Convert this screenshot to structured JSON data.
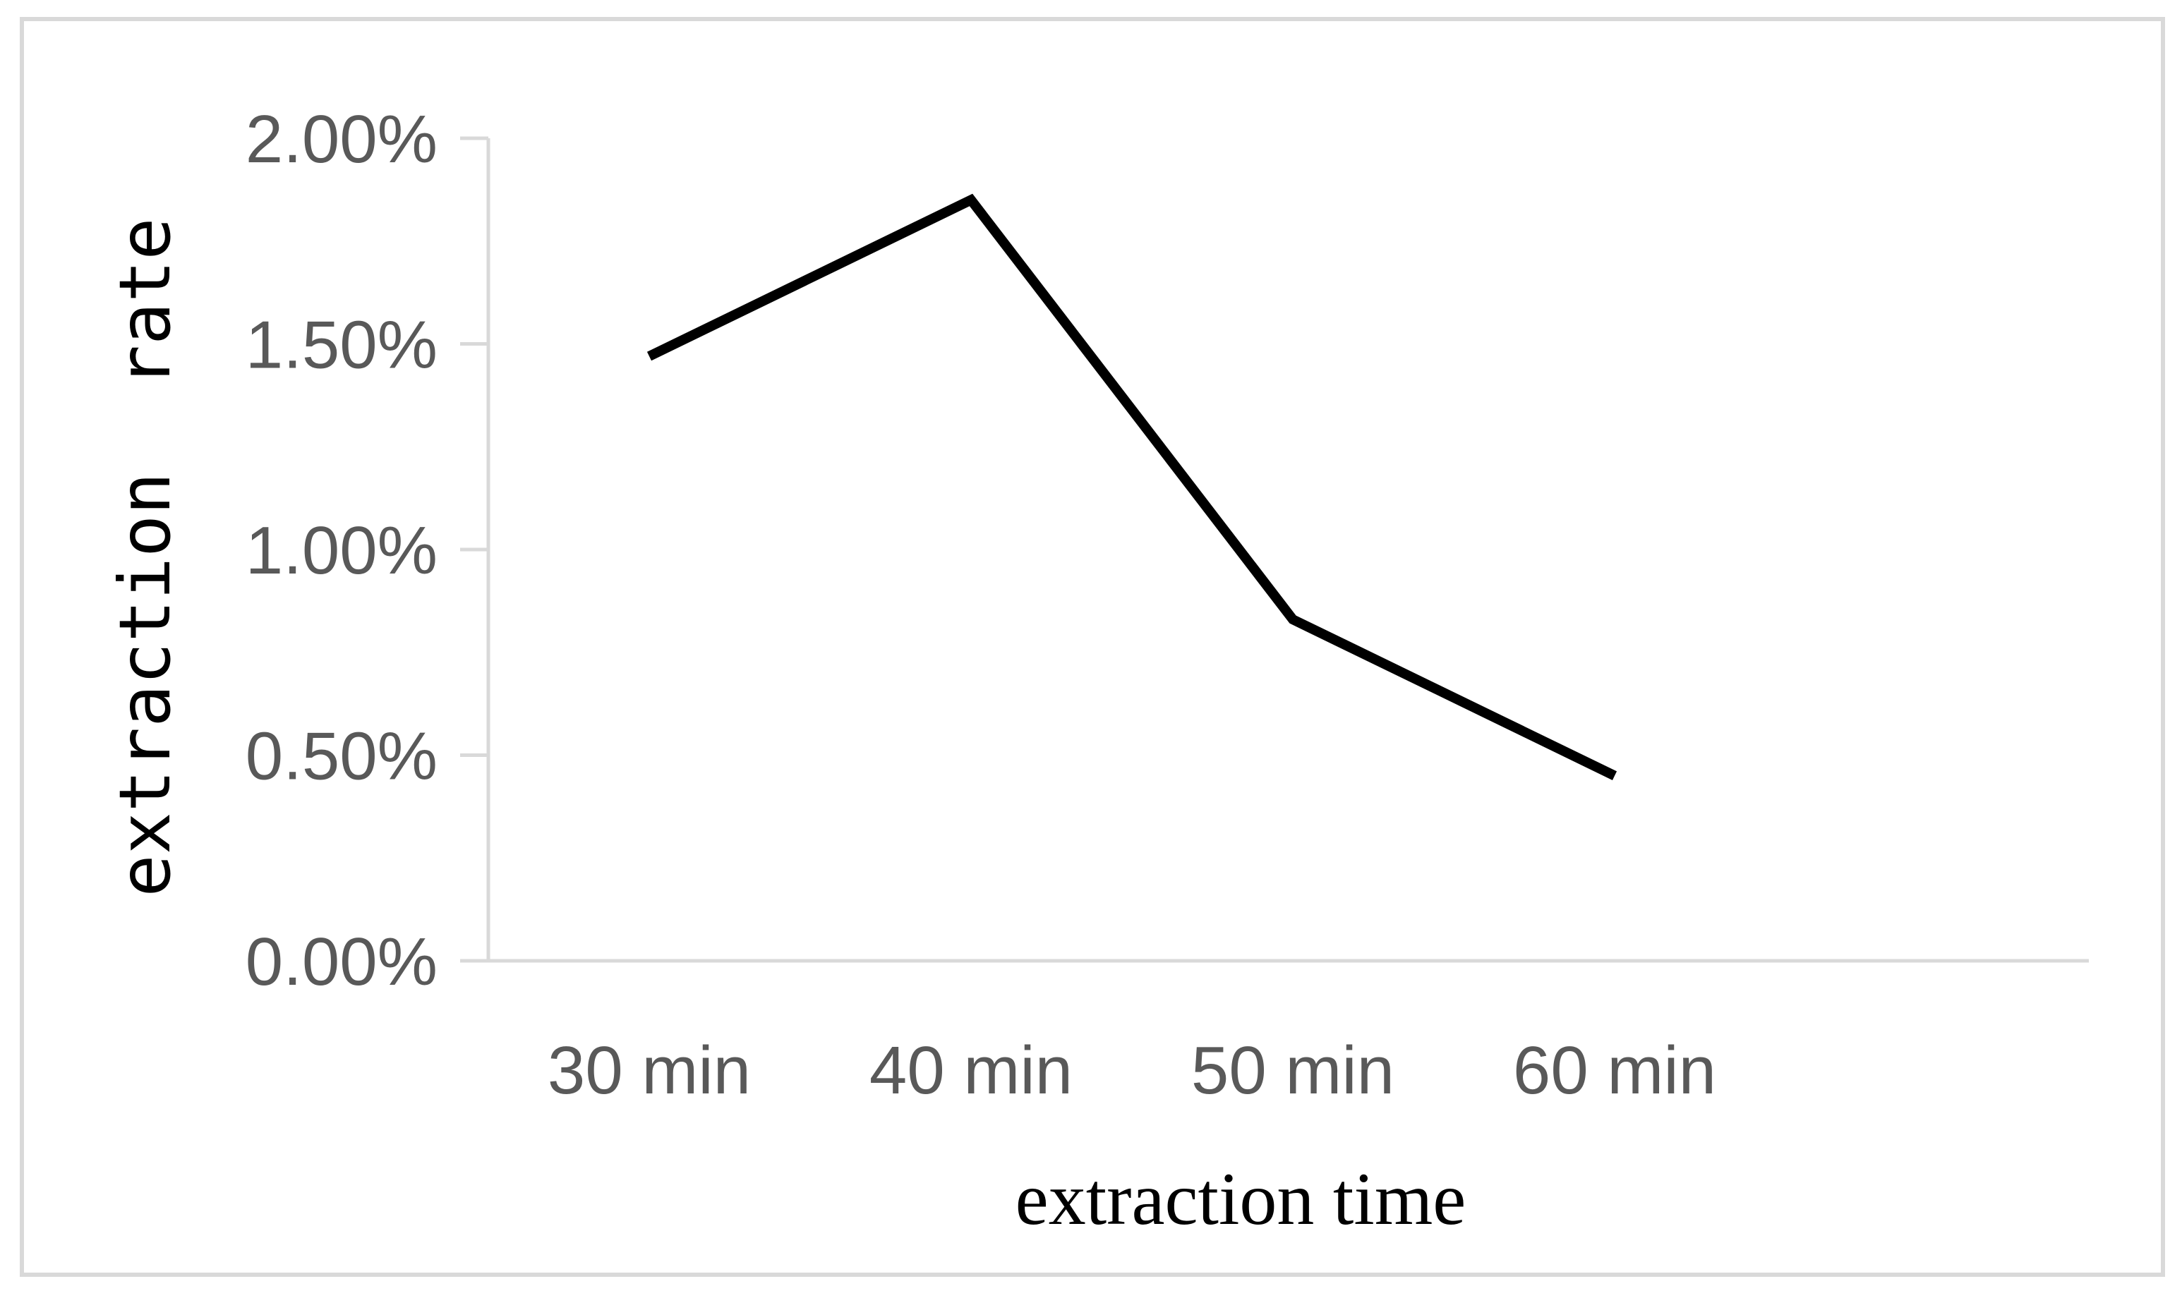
{
  "chart_data": {
    "type": "line",
    "title": "",
    "xlabel": "extraction time",
    "ylabel": "extraction  rate",
    "categories": [
      "30 min",
      "40 min",
      "50 min",
      "60 min"
    ],
    "series": [
      {
        "values": [
          1.47,
          1.85,
          0.83,
          0.45
        ],
        "color": "#000000"
      }
    ],
    "ylim": [
      0,
      2
    ],
    "yticks": [
      0,
      0.5,
      1.0,
      1.5,
      2.0
    ],
    "ytick_labels": [
      "0.00%",
      "0.50%",
      "1.00%",
      "1.50%",
      "2.00%"
    ],
    "y_unit": "percent",
    "grid": false,
    "legend": "none",
    "colors": {
      "axis": "#d9d9d9",
      "tick_text": "#595959",
      "line": "#000000",
      "frame": "#d9d9d9"
    }
  }
}
